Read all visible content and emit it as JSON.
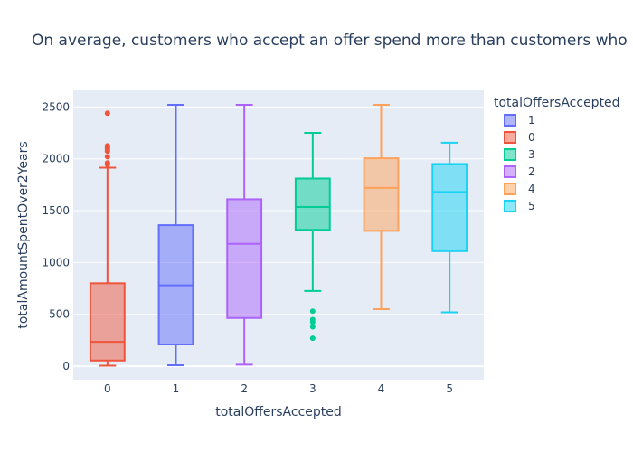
{
  "chart_data": {
    "type": "box",
    "title": "On average, customers who accept an offer spend more than customers who do not",
    "xlabel": "totalOffersAccepted",
    "ylabel": "totalAmountSpentOver2Years",
    "categories": [
      "0",
      "1",
      "2",
      "3",
      "4",
      "5"
    ],
    "yticks": [
      0,
      500,
      1000,
      1500,
      2000,
      2500
    ],
    "ylim": [
      -130,
      2660
    ],
    "grid": true,
    "legend": {
      "title": "totalOffersAccepted",
      "placement": "right"
    },
    "series": [
      {
        "name": "0",
        "category": "0",
        "color": "#EF553B",
        "fill": "rgba(239,85,59,0.5)",
        "min": 5,
        "q1": 55,
        "median": 235,
        "q3": 800,
        "max": 1915,
        "outliers": [
          1945,
          1960,
          2020,
          2075,
          2090,
          2105,
          2115,
          2125,
          2440
        ]
      },
      {
        "name": "1",
        "category": "1",
        "color": "#636EFA",
        "fill": "rgba(99,110,250,0.5)",
        "min": 10,
        "q1": 210,
        "median": 780,
        "q3": 1360,
        "max": 2520,
        "outliers": []
      },
      {
        "name": "2",
        "category": "2",
        "color": "#AB63FA",
        "fill": "rgba(171,99,250,0.5)",
        "min": 15,
        "q1": 465,
        "median": 1180,
        "q3": 1610,
        "max": 2520,
        "outliers": []
      },
      {
        "name": "3",
        "category": "3",
        "color": "#00CC96",
        "fill": "rgba(0,204,150,0.5)",
        "min": 725,
        "q1": 1315,
        "median": 1535,
        "q3": 1810,
        "max": 2250,
        "outliers": [
          530,
          450,
          425,
          380,
          270
        ]
      },
      {
        "name": "4",
        "category": "4",
        "color": "#FFA15A",
        "fill": "rgba(255,161,90,0.5)",
        "min": 550,
        "q1": 1305,
        "median": 1720,
        "q3": 2005,
        "max": 2520,
        "outliers": []
      },
      {
        "name": "5",
        "category": "5",
        "color": "#19D3F3",
        "fill": "rgba(25,211,243,0.5)",
        "min": 520,
        "q1": 1110,
        "median": 1680,
        "q3": 1950,
        "max": 2155,
        "outliers": []
      }
    ],
    "legend_order": [
      "1",
      "0",
      "3",
      "2",
      "4",
      "5"
    ]
  }
}
